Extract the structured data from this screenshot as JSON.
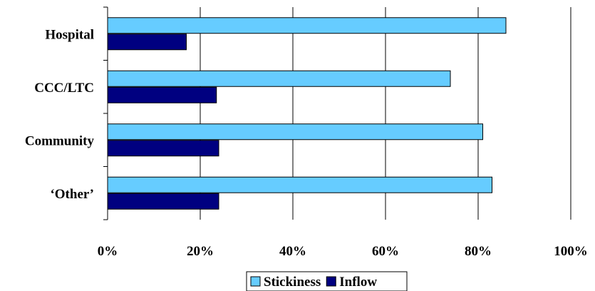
{
  "chart_data": {
    "type": "bar",
    "orientation": "horizontal",
    "categories": [
      "Hospital",
      "CCC/LTC",
      "Community",
      "‘Other’"
    ],
    "series": [
      {
        "name": "Stickiness",
        "values": [
          86,
          74,
          81,
          83
        ],
        "color": "#66ccff"
      },
      {
        "name": "Inflow",
        "values": [
          17,
          23.5,
          24,
          24
        ],
        "color": "#000080"
      }
    ],
    "xlim": [
      0,
      100
    ],
    "x_ticks": [
      "0%",
      "20%",
      "40%",
      "60%",
      "80%",
      "100%"
    ],
    "grid": "vertical",
    "legend_position": "bottom-center"
  }
}
